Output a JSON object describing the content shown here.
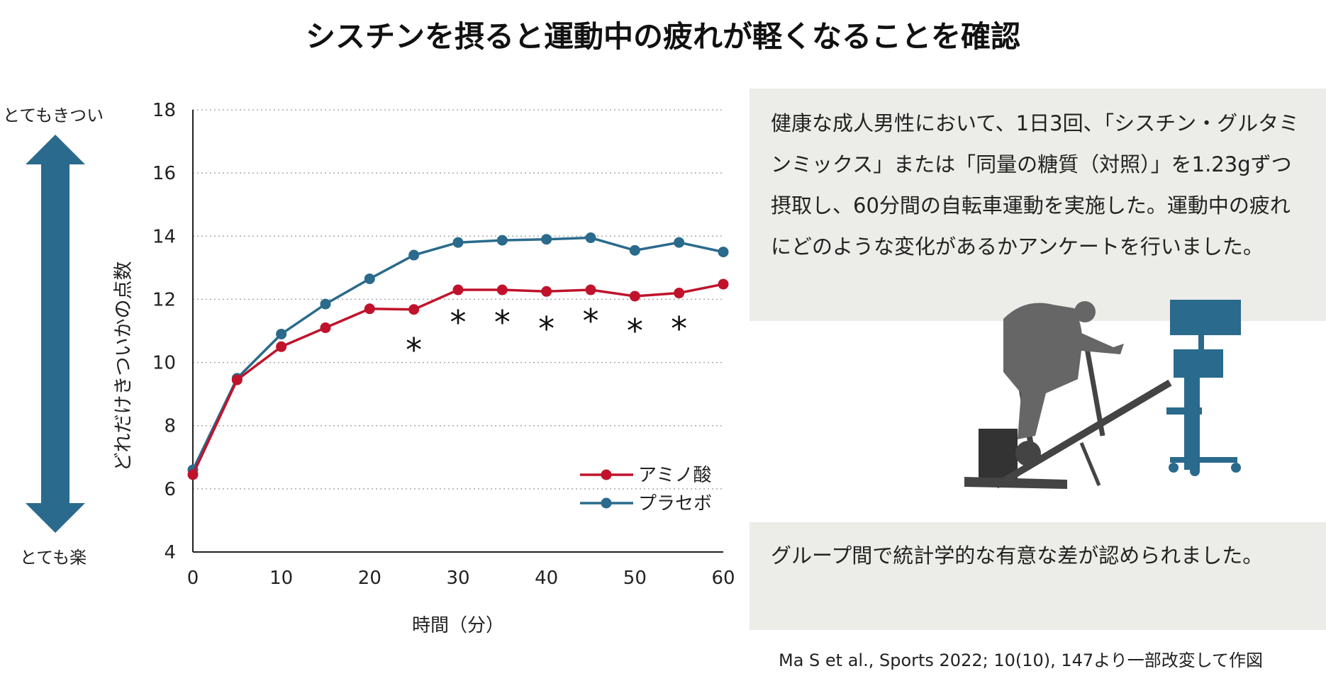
{
  "title": "シスチンを摂ると運動中の疲れが軽くなることを確認",
  "scale": {
    "top": "とてもきつい",
    "bottom": "とても楽",
    "arrow_color": "#2a6a8c"
  },
  "description": "健康な成人男性において、1日3回、「シスチン・グルタミンミックス」または「同量の糖質（対照）」を1.23gずつ摂取し、60分間の自転車運動を実施した。運動中の疲れにどのような変化があるかアンケートを行いました。",
  "result": "グループ間で統計学的な有意な差が認められました。",
  "citation": "Ma S et al., Sports 2022; 10(10), 147より一部改変して作図",
  "illustration": "cyclist-on-ergometer-icon",
  "chart_data": {
    "type": "line",
    "title": "",
    "xlabel": "時間（分）",
    "ylabel": "どれだけきついかの点数",
    "xlim": [
      0,
      60
    ],
    "ylim": [
      4,
      18
    ],
    "xticks": [
      0,
      10,
      20,
      30,
      40,
      50,
      60
    ],
    "yticks": [
      4,
      6,
      8,
      10,
      12,
      14,
      16,
      18
    ],
    "grid": "horizontal dotted",
    "legend": "bottom-right",
    "x": [
      0,
      5,
      10,
      15,
      20,
      25,
      30,
      35,
      40,
      45,
      50,
      55,
      60
    ],
    "series": [
      {
        "name": "アミノ酸",
        "color": "#c0132b",
        "values": [
          6.45,
          9.45,
          10.5,
          11.1,
          11.7,
          11.68,
          12.3,
          12.3,
          12.25,
          12.3,
          12.1,
          12.2,
          12.48
        ]
      },
      {
        "name": "プラセボ",
        "color": "#2a6a8c",
        "values": [
          6.6,
          9.5,
          10.9,
          11.85,
          12.65,
          13.4,
          13.8,
          13.87,
          13.9,
          13.95,
          13.55,
          13.8,
          13.5
        ]
      }
    ],
    "significance": {
      "marker": "＊",
      "x": [
        25,
        30,
        35,
        40,
        45,
        50,
        55
      ]
    }
  }
}
